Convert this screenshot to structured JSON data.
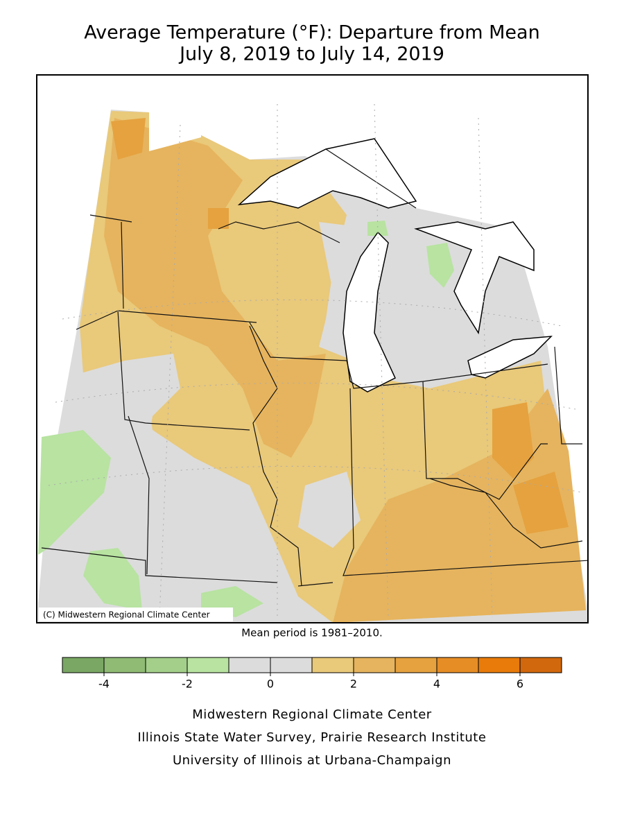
{
  "header": {
    "title_lines": [
      "Average Temperature (°F): Departure from Mean",
      "July 8, 2019 to July 14, 2019"
    ]
  },
  "map": {
    "credit": "(C) Midwestern Regional Climate Center",
    "note": "Mean period is 1981–2010."
  },
  "legend": {
    "bins": [
      -5,
      -4,
      -3,
      -2,
      -1,
      0,
      1,
      2,
      3,
      4,
      5,
      6,
      7
    ],
    "colors": [
      "#7aa864",
      "#8fbb75",
      "#a3cf8a",
      "#b8e3a1",
      "#dcdcdc",
      "#dcdcdc",
      "#e9c97a",
      "#e6b45e",
      "#e5a23f",
      "#e68d26",
      "#e87b0a",
      "#d2680d"
    ],
    "ticks": [
      -4,
      -2,
      0,
      2,
      4,
      6
    ]
  },
  "footer": {
    "lines": [
      "Midwestern Regional Climate Center",
      "Illinois State Water Survey, Prairie Research Institute",
      "University of Illinois at Urbana-Champaign"
    ]
  }
}
